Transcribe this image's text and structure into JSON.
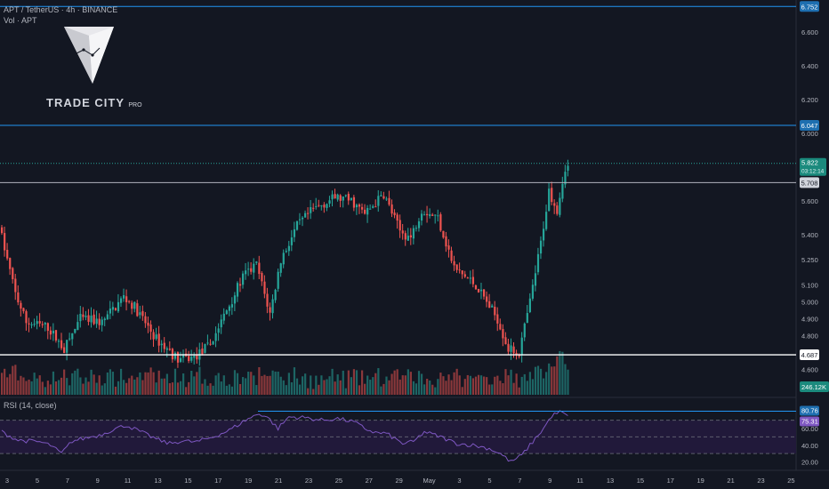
{
  "header": {
    "symbol_line": "APT / TetherUS · 4h · BINANCE",
    "volume_line": "Vol · APT",
    "rsi_line": "RSI (14, close)"
  },
  "logo": {
    "text": "TRADE CITY",
    "suffix": "PRO"
  },
  "colors": {
    "background": "#131722",
    "up": "#26a69a",
    "down": "#ef5350",
    "level_blue": "#2196f3",
    "level_white": "#ffffff",
    "rsi_line": "#7e57c2",
    "rsi_band": "#21193a"
  },
  "chart_data": {
    "type": "candlestick",
    "ylim": [
      4.45,
      6.78
    ],
    "y_ticks": [
      "6.600",
      "6.400",
      "6.200",
      "6.000",
      "5.600",
      "5.400",
      "5.250",
      "5.100",
      "5.000",
      "4.900",
      "4.800",
      "4.600",
      "4.510"
    ],
    "x_ticks": [
      "3",
      "5",
      "7",
      "9",
      "11",
      "13",
      "15",
      "17",
      "19",
      "21",
      "23",
      "25",
      "27",
      "29",
      "May",
      "3",
      "5",
      "7",
      "9",
      "11",
      "13",
      "15",
      "17",
      "19",
      "21",
      "23",
      "25"
    ],
    "price_anchors": [
      [
        0,
        5.45
      ],
      [
        6,
        5.05
      ],
      [
        10,
        4.88
      ],
      [
        18,
        4.85
      ],
      [
        24,
        4.72
      ],
      [
        30,
        4.9
      ],
      [
        38,
        4.88
      ],
      [
        46,
        5.03
      ],
      [
        50,
        4.97
      ],
      [
        58,
        4.78
      ],
      [
        66,
        4.66
      ],
      [
        72,
        4.67
      ],
      [
        78,
        4.75
      ],
      [
        84,
        4.95
      ],
      [
        90,
        5.15
      ],
      [
        95,
        5.22
      ],
      [
        100,
        4.93
      ],
      [
        104,
        5.25
      ],
      [
        110,
        5.45
      ],
      [
        116,
        5.55
      ],
      [
        124,
        5.62
      ],
      [
        130,
        5.6
      ],
      [
        135,
        5.52
      ],
      [
        142,
        5.64
      ],
      [
        148,
        5.42
      ],
      [
        152,
        5.38
      ],
      [
        156,
        5.55
      ],
      [
        162,
        5.5
      ],
      [
        168,
        5.2
      ],
      [
        176,
        5.1
      ],
      [
        184,
        4.9
      ],
      [
        188,
        4.72
      ],
      [
        192,
        4.7
      ],
      [
        196,
        5.0
      ],
      [
        200,
        5.35
      ],
      [
        203,
        5.66
      ],
      [
        206,
        5.55
      ],
      [
        209,
        5.8
      ]
    ],
    "levels": [
      {
        "price": 6.752,
        "label": "6.752",
        "kind": "resistance"
      },
      {
        "price": 6.047,
        "label": "6.047",
        "kind": "resistance"
      },
      {
        "price": 5.708,
        "label": "5.708",
        "kind": "resistance"
      },
      {
        "price": 4.687,
        "label": "4.687",
        "kind": "support"
      }
    ],
    "last_price": {
      "value": 5.822,
      "label": "5.822",
      "countdown": "03:12:14"
    },
    "volume": {
      "last_label": "246.12K"
    },
    "rsi": {
      "period": 14,
      "ylim": [
        12,
        92
      ],
      "ticks": [
        "60.00",
        "40.00",
        "20.00"
      ],
      "band": [
        30,
        70
      ],
      "mid": 50,
      "level_value": 80.76,
      "level_label": "80.76",
      "last_label": "75.31",
      "anchors": [
        [
          0,
          56
        ],
        [
          6,
          46
        ],
        [
          10,
          45
        ],
        [
          14,
          44
        ],
        [
          18,
          40
        ],
        [
          22,
          30
        ],
        [
          26,
          45
        ],
        [
          30,
          48
        ],
        [
          36,
          52
        ],
        [
          42,
          60
        ],
        [
          46,
          64
        ],
        [
          52,
          55
        ],
        [
          58,
          46
        ],
        [
          62,
          42
        ],
        [
          66,
          45
        ],
        [
          72,
          44
        ],
        [
          78,
          50
        ],
        [
          84,
          58
        ],
        [
          90,
          70
        ],
        [
          95,
          78
        ],
        [
          98,
          74
        ],
        [
          102,
          60
        ],
        [
          106,
          74
        ],
        [
          112,
          73
        ],
        [
          118,
          70
        ],
        [
          124,
          72
        ],
        [
          130,
          68
        ],
        [
          134,
          60
        ],
        [
          138,
          55
        ],
        [
          142,
          54
        ],
        [
          148,
          42
        ],
        [
          152,
          44
        ],
        [
          156,
          56
        ],
        [
          162,
          50
        ],
        [
          168,
          42
        ],
        [
          174,
          40
        ],
        [
          180,
          36
        ],
        [
          184,
          30
        ],
        [
          188,
          20
        ],
        [
          192,
          28
        ],
        [
          196,
          44
        ],
        [
          200,
          60
        ],
        [
          203,
          75
        ],
        [
          206,
          80
        ],
        [
          209,
          75
        ]
      ]
    }
  }
}
